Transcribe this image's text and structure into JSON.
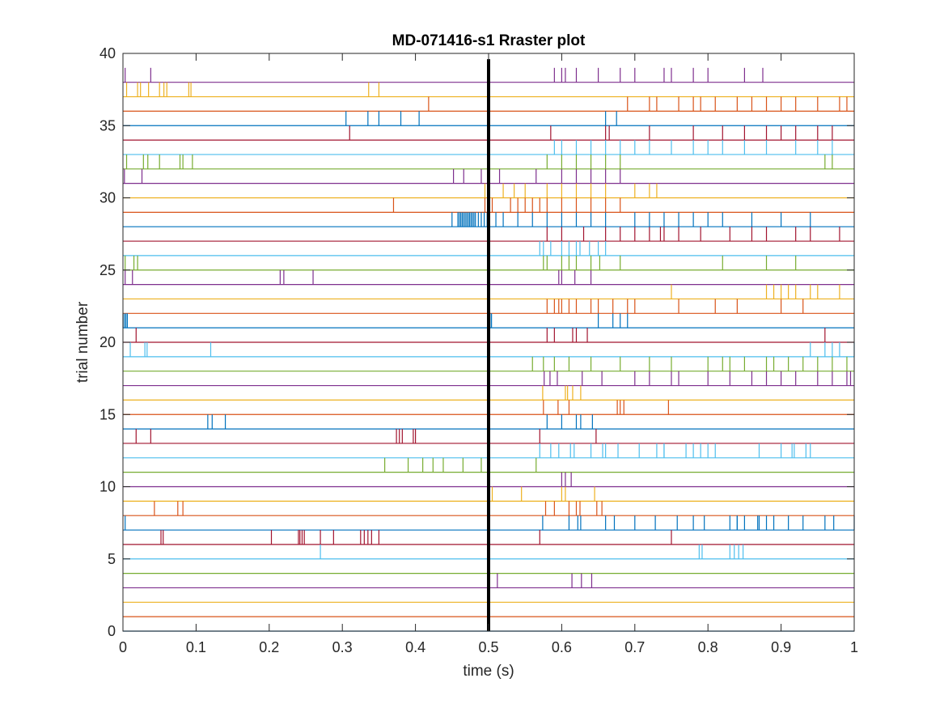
{
  "chart_data": {
    "type": "raster",
    "title": "MD-071416-s1 Rraster plot",
    "xlabel": "time (s)",
    "ylabel": "trial number",
    "xlim": [
      0,
      1
    ],
    "ylim": [
      0,
      40
    ],
    "xticks": [
      "0",
      "0.1",
      "0.2",
      "0.3",
      "0.4",
      "0.5",
      "0.6",
      "0.7",
      "0.8",
      "0.9",
      "1"
    ],
    "yticks": [
      "0",
      "5",
      "10",
      "15",
      "20",
      "25",
      "30",
      "35",
      "40"
    ],
    "grid": false,
    "event_marker": {
      "x": 0.5,
      "color": "#000000"
    },
    "colors": [
      "#0072BD",
      "#D95319",
      "#EDB120",
      "#7E2F8E",
      "#77AC30",
      "#4DBEEE",
      "#A2142F"
    ],
    "trials": [
      {
        "trial": 1,
        "spikes": []
      },
      {
        "trial": 2,
        "spikes": []
      },
      {
        "trial": 3,
        "spikes": []
      },
      {
        "trial": 4,
        "spikes": [
          0.512,
          0.614,
          0.627,
          0.641
        ]
      },
      {
        "trial": 5,
        "spikes": []
      },
      {
        "trial": 6,
        "spikes": [
          0.27,
          0.788,
          0.792,
          0.83,
          0.836,
          0.842,
          0.848
        ]
      },
      {
        "trial": 7,
        "spikes": [
          0.052,
          0.055,
          0.203,
          0.24,
          0.242,
          0.245,
          0.248,
          0.27,
          0.288,
          0.325,
          0.33,
          0.335,
          0.34,
          0.35,
          0.57,
          0.75
        ]
      },
      {
        "trial": 8,
        "spikes": [
          0.003,
          0.574,
          0.61,
          0.622,
          0.626,
          0.66,
          0.672,
          0.7,
          0.728,
          0.758,
          0.78,
          0.795,
          0.83,
          0.84,
          0.85,
          0.84,
          0.868,
          0.87,
          0.88,
          0.89,
          0.91,
          0.93,
          0.96,
          0.972,
          1.0
        ]
      },
      {
        "trial": 9,
        "spikes": [
          0.043,
          0.075,
          0.082,
          0.578,
          0.59,
          0.61,
          0.62,
          0.625,
          0.655,
          0.648
        ]
      },
      {
        "trial": 10,
        "spikes": [
          0.505,
          0.545,
          0.6,
          0.645,
          0.605
        ]
      },
      {
        "trial": 11,
        "spikes": [
          0.5,
          0.605,
          0.613,
          0.6
        ]
      },
      {
        "trial": 12,
        "spikes": [
          0.358,
          0.39,
          0.41,
          0.424,
          0.438,
          0.465,
          0.49,
          0.565
        ]
      },
      {
        "trial": 13,
        "spikes": [
          0.57,
          0.585,
          0.596,
          0.612,
          0.617,
          0.64,
          0.656,
          0.66,
          0.677,
          0.706,
          0.73,
          0.74,
          0.74,
          0.77,
          0.78,
          0.79,
          0.8,
          0.81,
          0.87,
          0.9,
          0.915,
          0.918,
          0.934,
          0.94
        ]
      },
      {
        "trial": 14,
        "spikes": [
          0.018,
          0.038,
          0.374,
          0.378,
          0.382,
          0.397,
          0.4,
          0.57,
          0.647
        ]
      },
      {
        "trial": 15,
        "spikes": [
          0.116,
          0.122,
          0.14,
          0.58,
          0.6,
          0.62,
          0.626,
          0.642
        ]
      },
      {
        "trial": 16,
        "spikes": [
          0.575,
          0.595,
          0.61,
          0.68,
          0.676,
          0.685,
          0.746
        ]
      },
      {
        "trial": 17,
        "spikes": [
          0.574,
          0.605,
          0.608,
          0.615,
          0.626
        ]
      },
      {
        "trial": 18,
        "spikes": [
          0.576,
          0.584,
          0.594,
          0.628,
          0.655,
          0.7,
          0.72,
          0.75,
          0.76,
          0.8,
          0.83,
          0.86,
          0.88,
          0.9,
          0.92,
          0.95,
          0.97,
          0.99,
          0.995
        ]
      },
      {
        "trial": 19,
        "spikes": [
          0.56,
          0.575,
          0.59,
          0.61,
          0.64,
          0.68,
          0.72,
          0.75,
          0.8,
          0.82,
          0.83,
          0.85,
          0.88,
          0.89,
          0.91,
          0.93,
          0.95,
          0.97,
          0.99
        ]
      },
      {
        "trial": 20,
        "spikes": [
          0.01,
          0.03,
          0.033,
          0.12,
          0.94,
          0.96,
          0.97,
          0.98,
          1.0
        ]
      },
      {
        "trial": 21,
        "spikes": [
          0.018,
          0.58,
          0.59,
          0.615,
          0.62,
          0.635,
          0.96
        ]
      },
      {
        "trial": 22,
        "spikes": [
          0.0,
          0.002,
          0.004,
          0.006,
          0.5,
          0.502,
          0.504,
          0.65,
          0.67,
          0.68,
          0.69
        ]
      },
      {
        "trial": 23,
        "spikes": [
          0.58,
          0.59,
          0.596,
          0.6,
          0.61,
          0.62,
          0.64,
          0.65,
          0.67,
          0.69,
          0.7,
          0.76,
          0.81,
          0.84,
          0.9,
          0.93
        ]
      },
      {
        "trial": 24,
        "spikes": [
          0.75,
          0.88,
          0.89,
          0.9,
          0.91,
          0.92,
          0.94,
          0.95,
          0.98
        ]
      },
      {
        "trial": 25,
        "spikes": [
          0.003,
          0.013,
          0.215,
          0.22,
          0.26,
          0.596,
          0.6,
          0.618,
          0.64
        ]
      },
      {
        "trial": 26,
        "spikes": [
          0.003,
          0.015,
          0.02,
          0.575,
          0.58,
          0.6,
          0.61,
          0.62,
          0.64,
          0.652,
          0.68,
          0.82,
          0.88,
          0.92
        ]
      },
      {
        "trial": 27,
        "spikes": [
          0.57,
          0.575,
          0.585,
          0.6,
          0.61,
          0.62,
          0.625,
          0.638,
          0.65,
          0.66
        ]
      },
      {
        "trial": 28,
        "spikes": [
          0.58,
          0.6,
          0.63,
          0.66,
          0.68,
          0.7,
          0.72,
          0.735,
          0.74,
          0.76,
          0.79,
          0.83,
          0.86,
          0.88,
          0.92,
          0.94,
          0.98
        ]
      },
      {
        "trial": 29,
        "spikes": [
          0.45,
          0.458,
          0.46,
          0.462,
          0.464,
          0.466,
          0.468,
          0.47,
          0.472,
          0.474,
          0.476,
          0.478,
          0.48,
          0.482,
          0.486,
          0.49,
          0.494,
          0.498,
          0.51,
          0.52,
          0.54,
          0.56,
          0.58,
          0.6,
          0.62,
          0.64,
          0.66,
          0.7,
          0.72,
          0.74,
          0.76,
          0.78,
          0.8,
          0.82,
          0.86,
          0.9,
          0.94
        ]
      },
      {
        "trial": 30,
        "spikes": [
          0.37,
          0.495,
          0.505,
          0.53,
          0.54,
          0.55,
          0.56,
          0.57,
          0.58,
          0.6,
          0.62,
          0.64,
          0.66,
          0.68
        ]
      },
      {
        "trial": 31,
        "spikes": [
          0.495,
          0.52,
          0.535,
          0.55,
          0.58,
          0.6,
          0.62,
          0.64,
          0.66,
          0.7,
          0.72,
          0.73
        ]
      },
      {
        "trial": 32,
        "spikes": [
          0.002,
          0.026,
          0.452,
          0.466,
          0.49,
          0.515,
          0.565,
          0.6,
          0.62,
          0.64,
          0.66,
          0.68
        ]
      },
      {
        "trial": 33,
        "spikes": [
          0.005,
          0.028,
          0.034,
          0.05,
          0.078,
          0.082,
          0.095,
          0.58,
          0.6,
          0.62,
          0.64,
          0.66,
          0.68,
          0.96,
          0.97
        ]
      },
      {
        "trial": 34,
        "spikes": [
          0.59,
          0.6,
          0.62,
          0.64,
          0.66,
          0.68,
          0.7,
          0.72,
          0.75,
          0.78,
          0.8,
          0.82,
          0.85,
          0.88,
          0.92,
          0.95,
          0.97
        ]
      },
      {
        "trial": 35,
        "spikes": [
          0.31,
          0.585,
          0.66,
          0.665,
          0.72,
          0.78,
          0.82,
          0.85,
          0.88,
          0.9,
          0.92,
          0.95,
          0.97
        ]
      },
      {
        "trial": 36,
        "spikes": [
          0.305,
          0.335,
          0.35,
          0.38,
          0.405,
          0.66,
          0.675
        ]
      },
      {
        "trial": 37,
        "spikes": [
          0.418,
          0.69,
          0.72,
          0.73,
          0.76,
          0.78,
          0.79,
          0.81,
          0.84,
          0.86,
          0.88,
          0.9,
          0.92,
          0.95,
          0.98,
          0.99
        ]
      },
      {
        "trial": 38,
        "spikes": [
          0.005,
          0.02,
          0.024,
          0.035,
          0.05,
          0.056,
          0.06,
          0.09,
          0.093,
          0.336,
          0.35
        ]
      },
      {
        "trial": 39,
        "spikes": [
          0.003,
          0.038,
          0.59,
          0.6,
          0.605,
          0.62,
          0.65,
          0.68,
          0.7,
          0.74,
          0.75,
          0.78,
          0.8,
          0.85,
          0.875
        ]
      }
    ]
  }
}
